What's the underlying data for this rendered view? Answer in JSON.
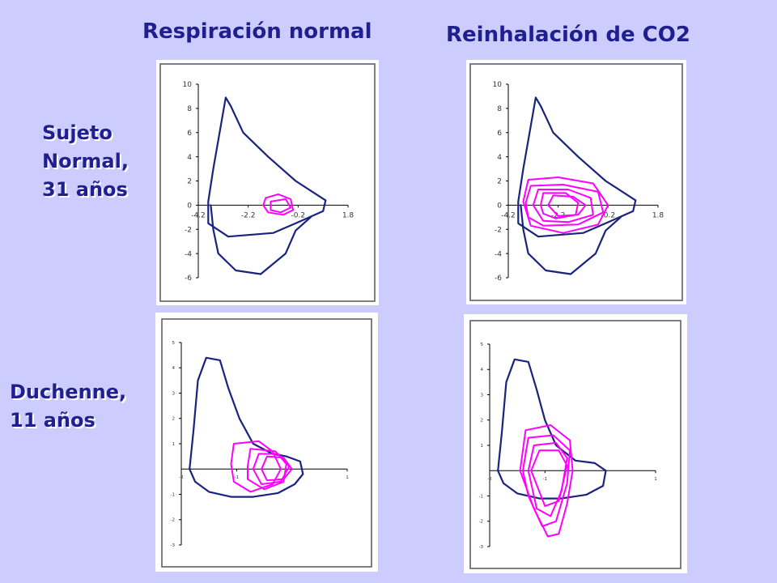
{
  "columns": [
    "Respiración normal",
    "Reinhalación de CO2"
  ],
  "rows": [
    {
      "lines": [
        "Sujeto",
        "Normal,",
        "31 años"
      ]
    },
    {
      "lines": [
        "Duchenne,",
        "11 años"
      ]
    }
  ],
  "colors": {
    "background": "#ccccff",
    "title_text": "#1f1f8f",
    "max_loop": "#1a237e",
    "breath_loops": "#ff00ff"
  },
  "chart_data": [
    {
      "type": "line",
      "row": "Sujeto Normal, 31 años",
      "column": "Respiración normal",
      "xlim": [
        -4.2,
        1.8
      ],
      "ylim": [
        -6,
        10
      ],
      "x_tick_labels": [
        "-4.2",
        "-2.2",
        "-0.2",
        "1.8"
      ],
      "y_tick_labels": [
        "10",
        "8",
        "6",
        "4",
        "2",
        "0",
        "-2",
        "-4",
        "-6"
      ],
      "series": [
        {
          "values": [
            [
              -3.8,
              0.3
            ],
            [
              -3.6,
              3
            ],
            [
              -3.1,
              8.9
            ],
            [
              -2.9,
              8.2
            ],
            [
              -2.4,
              6
            ],
            [
              -1.4,
              4
            ],
            [
              -0.3,
              2
            ],
            [
              0.9,
              0.4
            ],
            [
              0.8,
              -0.5
            ],
            [
              -0.3,
              -1.5
            ],
            [
              -1.2,
              -2.3
            ],
            [
              -3.0,
              -2.6
            ],
            [
              -3.8,
              -1.5
            ],
            [
              -3.8,
              0.3
            ]
          ]
        },
        {
          "values": [
            [
              -3.7,
              0
            ],
            [
              -3.6,
              -2
            ],
            [
              -3.4,
              -4
            ],
            [
              -2.7,
              -5.4
            ],
            [
              -1.7,
              -5.7
            ],
            [
              -0.7,
              -4
            ],
            [
              -0.3,
              -2.1
            ],
            [
              0.3,
              -1
            ]
          ]
        },
        {
          "values": [
            [
              -1.5,
              0.6
            ],
            [
              -1.0,
              0.9
            ],
            [
              -0.5,
              0.5
            ],
            [
              -0.4,
              -0.4
            ],
            [
              -0.8,
              -0.8
            ],
            [
              -1.4,
              -0.6
            ],
            [
              -1.6,
              0
            ],
            [
              -1.5,
              0.6
            ]
          ]
        },
        {
          "values": [
            [
              -1.3,
              0.3
            ],
            [
              -0.7,
              0.5
            ],
            [
              -0.5,
              -0.2
            ],
            [
              -0.9,
              -0.6
            ],
            [
              -1.3,
              -0.4
            ],
            [
              -1.3,
              0.3
            ]
          ]
        }
      ]
    },
    {
      "type": "line",
      "row": "Sujeto Normal, 31 años",
      "column": "Reinhalación de CO2",
      "xlim": [
        -4.2,
        1.8
      ],
      "ylim": [
        -6,
        10
      ],
      "x_tick_labels": [
        "-4.2",
        "-2.2",
        "-0.2",
        "1.8"
      ],
      "y_tick_labels": [
        "10",
        "8",
        "6",
        "4",
        "2",
        "0",
        "-2",
        "-4",
        "-6"
      ],
      "series": [
        {
          "values": [
            [
              -3.8,
              0.3
            ],
            [
              -3.6,
              3
            ],
            [
              -3.1,
              8.9
            ],
            [
              -2.9,
              8.2
            ],
            [
              -2.4,
              6
            ],
            [
              -1.4,
              4
            ],
            [
              -0.3,
              2
            ],
            [
              0.9,
              0.4
            ],
            [
              0.8,
              -0.5
            ],
            [
              -0.3,
              -1.5
            ],
            [
              -1.2,
              -2.3
            ],
            [
              -3.0,
              -2.6
            ],
            [
              -3.8,
              -1.5
            ],
            [
              -3.8,
              0.3
            ]
          ]
        },
        {
          "values": [
            [
              -3.7,
              0
            ],
            [
              -3.6,
              -2
            ],
            [
              -3.4,
              -4
            ],
            [
              -2.7,
              -5.4
            ],
            [
              -1.7,
              -5.7
            ],
            [
              -0.7,
              -4
            ],
            [
              -0.3,
              -2.1
            ],
            [
              0.3,
              -1
            ]
          ]
        },
        {
          "values": [
            [
              -3.6,
              0.3
            ],
            [
              -3.4,
              2.1
            ],
            [
              -2.2,
              2.3
            ],
            [
              -0.8,
              1.8
            ],
            [
              -0.2,
              0
            ],
            [
              -0.6,
              -1.6
            ],
            [
              -2.0,
              -2.3
            ],
            [
              -3.3,
              -1.7
            ],
            [
              -3.6,
              0.3
            ]
          ]
        },
        {
          "values": [
            [
              -3.5,
              0.2
            ],
            [
              -3.3,
              1.6
            ],
            [
              -2.0,
              1.7
            ],
            [
              -0.6,
              1.1
            ],
            [
              -0.4,
              -0.6
            ],
            [
              -1.4,
              -1.6
            ],
            [
              -2.8,
              -1.7
            ],
            [
              -3.4,
              -1.0
            ],
            [
              -3.5,
              0.2
            ]
          ]
        },
        {
          "values": [
            [
              -3.2,
              0
            ],
            [
              -3.0,
              1.3
            ],
            [
              -1.8,
              1.3
            ],
            [
              -0.9,
              0.6
            ],
            [
              -0.8,
              -0.8
            ],
            [
              -1.8,
              -1.4
            ],
            [
              -2.8,
              -1.3
            ],
            [
              -3.2,
              0
            ]
          ]
        },
        {
          "values": [
            [
              -2.9,
              0
            ],
            [
              -2.8,
              1.0
            ],
            [
              -1.9,
              1.0
            ],
            [
              -1.4,
              0.2
            ],
            [
              -1.5,
              -0.8
            ],
            [
              -2.3,
              -1.1
            ],
            [
              -2.8,
              -0.7
            ],
            [
              -2.9,
              0
            ]
          ]
        },
        {
          "values": [
            [
              -2.6,
              0
            ],
            [
              -2.4,
              0.8
            ],
            [
              -1.6,
              0.7
            ],
            [
              -1.1,
              0
            ],
            [
              -1.4,
              -0.8
            ],
            [
              -2.2,
              -0.9
            ],
            [
              -2.6,
              0
            ]
          ]
        }
      ]
    },
    {
      "type": "line",
      "row": "Duchenne, 11 años",
      "column": "Respiración normal",
      "xlim": [
        -2,
        1
      ],
      "ylim": [
        -3,
        5
      ],
      "x_tick_labels": [
        "-2",
        "-1",
        "1"
      ],
      "y_tick_labels": [
        "5",
        "4",
        "3",
        "2",
        "1",
        "-1",
        "-2",
        "-3"
      ],
      "series": [
        {
          "values": [
            [
              -1.85,
              0
            ],
            [
              -1.78,
              1.5
            ],
            [
              -1.7,
              3.5
            ],
            [
              -1.55,
              4.4
            ],
            [
              -1.3,
              4.3
            ],
            [
              -1.15,
              3.2
            ],
            [
              -0.95,
              2
            ],
            [
              -0.7,
              1.0
            ],
            [
              -0.35,
              0.6
            ],
            [
              -0.1,
              0.5
            ],
            [
              0.15,
              0.3
            ],
            [
              0.2,
              -0.2
            ],
            [
              0.05,
              -0.6
            ],
            [
              -0.25,
              -0.95
            ],
            [
              -0.7,
              -1.1
            ],
            [
              -1.1,
              -1.1
            ],
            [
              -1.5,
              -0.9
            ],
            [
              -1.75,
              -0.5
            ],
            [
              -1.85,
              0
            ]
          ]
        },
        {
          "values": [
            [
              -1.1,
              0.2
            ],
            [
              -1.05,
              1.0
            ],
            [
              -0.6,
              1.1
            ],
            [
              -0.35,
              0.7
            ],
            [
              -0.2,
              0
            ],
            [
              -0.35,
              -0.6
            ],
            [
              -0.75,
              -0.9
            ],
            [
              -1.05,
              -0.5
            ],
            [
              -1.1,
              0.2
            ]
          ]
        },
        {
          "values": [
            [
              -0.8,
              0.1
            ],
            [
              -0.75,
              0.8
            ],
            [
              -0.3,
              0.7
            ],
            [
              -0.1,
              0.2
            ],
            [
              -0.15,
              -0.5
            ],
            [
              -0.5,
              -0.8
            ],
            [
              -0.8,
              -0.4
            ],
            [
              -0.8,
              0.1
            ]
          ]
        },
        {
          "values": [
            [
              -0.7,
              0
            ],
            [
              -0.6,
              0.6
            ],
            [
              -0.25,
              0.6
            ],
            [
              -0.05,
              0.1
            ],
            [
              -0.2,
              -0.5
            ],
            [
              -0.55,
              -0.6
            ],
            [
              -0.7,
              0
            ]
          ]
        },
        {
          "values": [
            [
              -0.55,
              0
            ],
            [
              -0.45,
              0.5
            ],
            [
              -0.15,
              0.45
            ],
            [
              0.0,
              0
            ],
            [
              -0.15,
              -0.4
            ],
            [
              -0.45,
              -0.45
            ],
            [
              -0.55,
              0
            ]
          ]
        }
      ]
    },
    {
      "type": "line",
      "row": "Duchenne, 11 años",
      "column": "Reinhalación de CO2",
      "xlim": [
        -2,
        1
      ],
      "ylim": [
        -3,
        5
      ],
      "x_tick_labels": [
        "-2",
        "-1",
        "1"
      ],
      "y_tick_labels": [
        "5",
        "4",
        "3",
        "2",
        "1",
        "-1",
        "-2",
        "-3"
      ],
      "series": [
        {
          "values": [
            [
              -1.85,
              0
            ],
            [
              -1.78,
              1.5
            ],
            [
              -1.7,
              3.5
            ],
            [
              -1.55,
              4.4
            ],
            [
              -1.3,
              4.3
            ],
            [
              -1.15,
              3.2
            ],
            [
              -1.0,
              2
            ],
            [
              -0.8,
              1.0
            ],
            [
              -0.45,
              0.4
            ],
            [
              -0.1,
              0.3
            ],
            [
              0.1,
              0
            ],
            [
              0.05,
              -0.6
            ],
            [
              -0.25,
              -0.95
            ],
            [
              -0.7,
              -1.1
            ],
            [
              -1.1,
              -1.1
            ],
            [
              -1.5,
              -0.9
            ],
            [
              -1.75,
              -0.5
            ],
            [
              -1.85,
              0
            ]
          ]
        },
        {
          "values": [
            [
              -1.45,
              0
            ],
            [
              -1.35,
              1.6
            ],
            [
              -0.9,
              1.8
            ],
            [
              -0.55,
              1.2
            ],
            [
              -0.5,
              0
            ],
            [
              -0.6,
              -1.3
            ],
            [
              -0.75,
              -2.5
            ],
            [
              -0.95,
              -2.6
            ],
            [
              -1.2,
              -1.5
            ],
            [
              -1.45,
              0
            ]
          ]
        },
        {
          "values": [
            [
              -1.4,
              0
            ],
            [
              -1.3,
              1.3
            ],
            [
              -0.85,
              1.4
            ],
            [
              -0.55,
              0.8
            ],
            [
              -0.6,
              -0.5
            ],
            [
              -0.8,
              -2.0
            ],
            [
              -1.05,
              -2.2
            ],
            [
              -1.3,
              -1.0
            ],
            [
              -1.4,
              0
            ]
          ]
        },
        {
          "values": [
            [
              -1.3,
              0
            ],
            [
              -1.2,
              1.0
            ],
            [
              -0.8,
              1.1
            ],
            [
              -0.6,
              0.5
            ],
            [
              -0.7,
              -0.8
            ],
            [
              -0.9,
              -1.8
            ],
            [
              -1.15,
              -1.5
            ],
            [
              -1.3,
              0
            ]
          ]
        },
        {
          "values": [
            [
              -1.25,
              0
            ],
            [
              -1.1,
              0.8
            ],
            [
              -0.75,
              0.8
            ],
            [
              -0.6,
              0.2
            ],
            [
              -0.75,
              -1.2
            ],
            [
              -1.0,
              -1.4
            ],
            [
              -1.25,
              0
            ]
          ]
        }
      ]
    }
  ]
}
